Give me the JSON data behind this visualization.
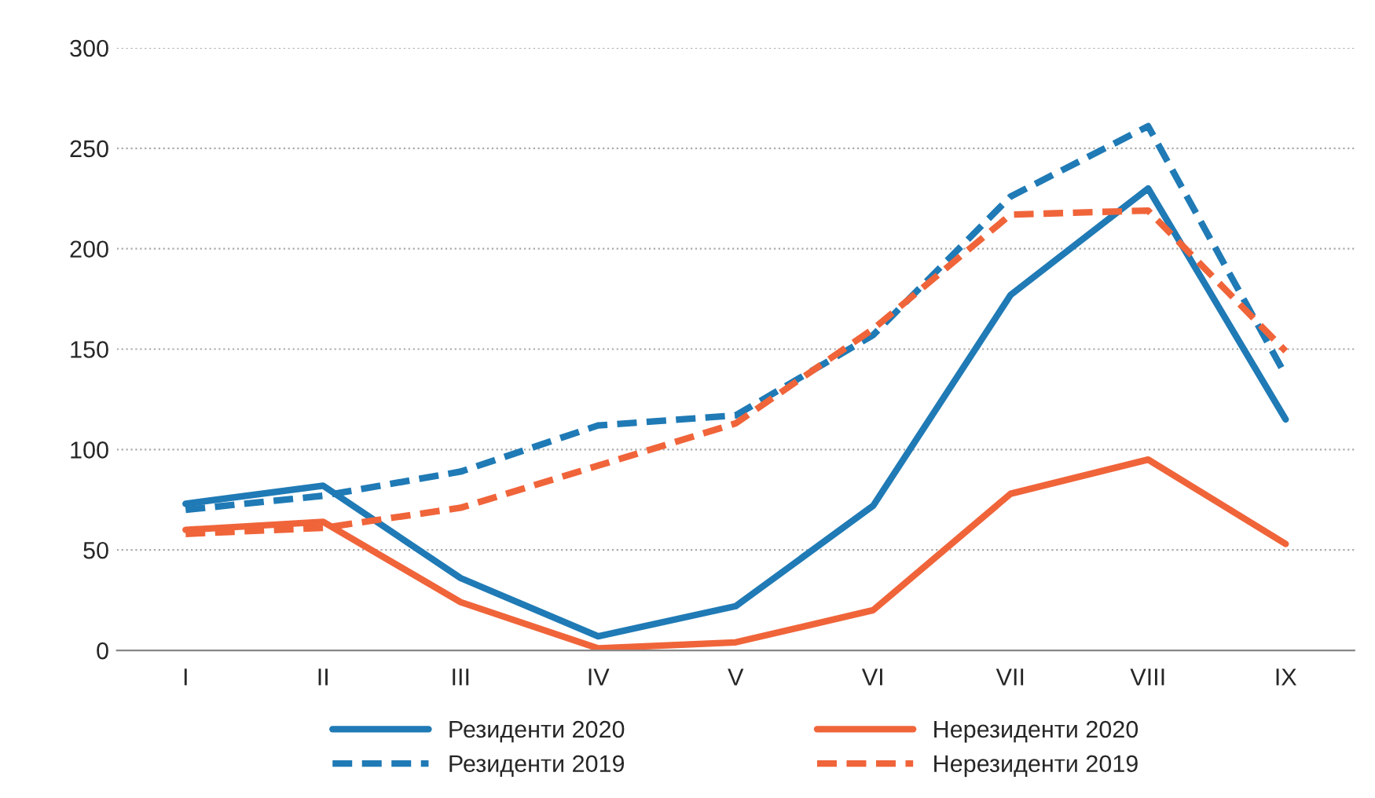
{
  "chart_data": {
    "type": "line",
    "categories": [
      "I",
      "II",
      "III",
      "IV",
      "V",
      "VI",
      "VII",
      "VIII",
      "IX"
    ],
    "series": [
      {
        "name": "Резиденти 2020",
        "color": "#1f7ab5",
        "line_style": "solid",
        "values": [
          73,
          82,
          36,
          7,
          22,
          72,
          177,
          230,
          115
        ]
      },
      {
        "name": "Резиденти 2019",
        "color": "#1f7ab5",
        "line_style": "dashed",
        "values": [
          70,
          77,
          89,
          112,
          117,
          157,
          226,
          261,
          137
        ]
      },
      {
        "name": "Нерезиденти 2020",
        "color": "#f0643a",
        "line_style": "solid",
        "values": [
          60,
          64,
          24,
          1,
          4,
          20,
          78,
          95,
          53
        ]
      },
      {
        "name": "Нерезиденти 2019",
        "color": "#f0643a",
        "line_style": "dashed",
        "values": [
          58,
          61,
          71,
          92,
          113,
          160,
          217,
          219,
          149
        ]
      }
    ],
    "ylim": [
      0,
      300
    ],
    "yticks": [
      0,
      50,
      100,
      150,
      200,
      250,
      300
    ],
    "grid": "y",
    "legend": "bottom"
  }
}
